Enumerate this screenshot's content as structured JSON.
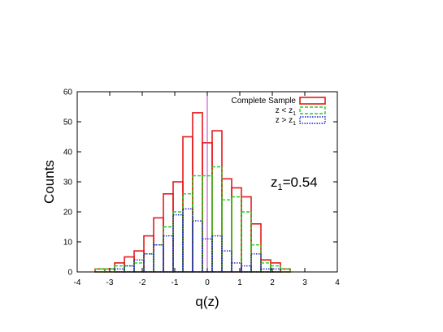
{
  "chart_data": {
    "type": "bar",
    "title": "",
    "xlabel": "q(z)",
    "ylabel": "Counts",
    "xlim": [
      -4,
      4
    ],
    "ylim": [
      0,
      60
    ],
    "xticks": [
      -4,
      -3,
      -2,
      -1,
      0,
      1,
      2,
      3,
      4
    ],
    "xtick_labels": [
      "-4",
      "-3",
      "-2",
      "-1",
      "0",
      "1",
      "2",
      "3",
      "4"
    ],
    "yticks": [
      0,
      10,
      20,
      30,
      40,
      50,
      60
    ],
    "ytick_labels": [
      "0",
      "10",
      "20",
      "30",
      "40",
      "50",
      "60"
    ],
    "bin_width": 0.3,
    "bin_lefts": [
      -3.45,
      -3.15,
      -2.85,
      -2.55,
      -2.25,
      -1.95,
      -1.65,
      -1.35,
      -1.05,
      -0.75,
      -0.45,
      -0.15,
      0.15,
      0.45,
      0.75,
      1.05,
      1.35,
      1.65,
      1.95,
      2.25
    ],
    "series": [
      {
        "name": "Complete Sample",
        "color": "#e41a1c",
        "style": "solid",
        "values": [
          1,
          1,
          3,
          5,
          7,
          12,
          18,
          26,
          30,
          45,
          53,
          43,
          47,
          31,
          28,
          25,
          16,
          4,
          3,
          1
        ]
      },
      {
        "name": "z < z_1",
        "color": "#1fd21f",
        "style": "dashed",
        "values": [
          1,
          1,
          2,
          2,
          3,
          6,
          9,
          15,
          20,
          26,
          32,
          32,
          35,
          24,
          25,
          20,
          9,
          3,
          2,
          1
        ]
      },
      {
        "name": "z > z_1",
        "color": "#1c1cd6",
        "style": "dotted",
        "values": [
          0,
          0,
          1,
          2,
          4,
          6,
          9,
          12,
          19,
          21,
          17,
          11,
          12,
          7,
          3,
          2,
          6,
          1,
          1,
          0
        ]
      }
    ],
    "legend": [
      {
        "text": "Complete Sample",
        "sub": ""
      },
      {
        "text": "z < z",
        "sub": "1"
      },
      {
        "text": "z > z",
        "sub": "1"
      }
    ],
    "legend_position": "top-right",
    "vertical_line": {
      "x": 0,
      "color": "#cc33cc"
    },
    "annotation": {
      "text": "z",
      "sub": "1",
      "suffix": "=0.54"
    },
    "grid": false
  }
}
